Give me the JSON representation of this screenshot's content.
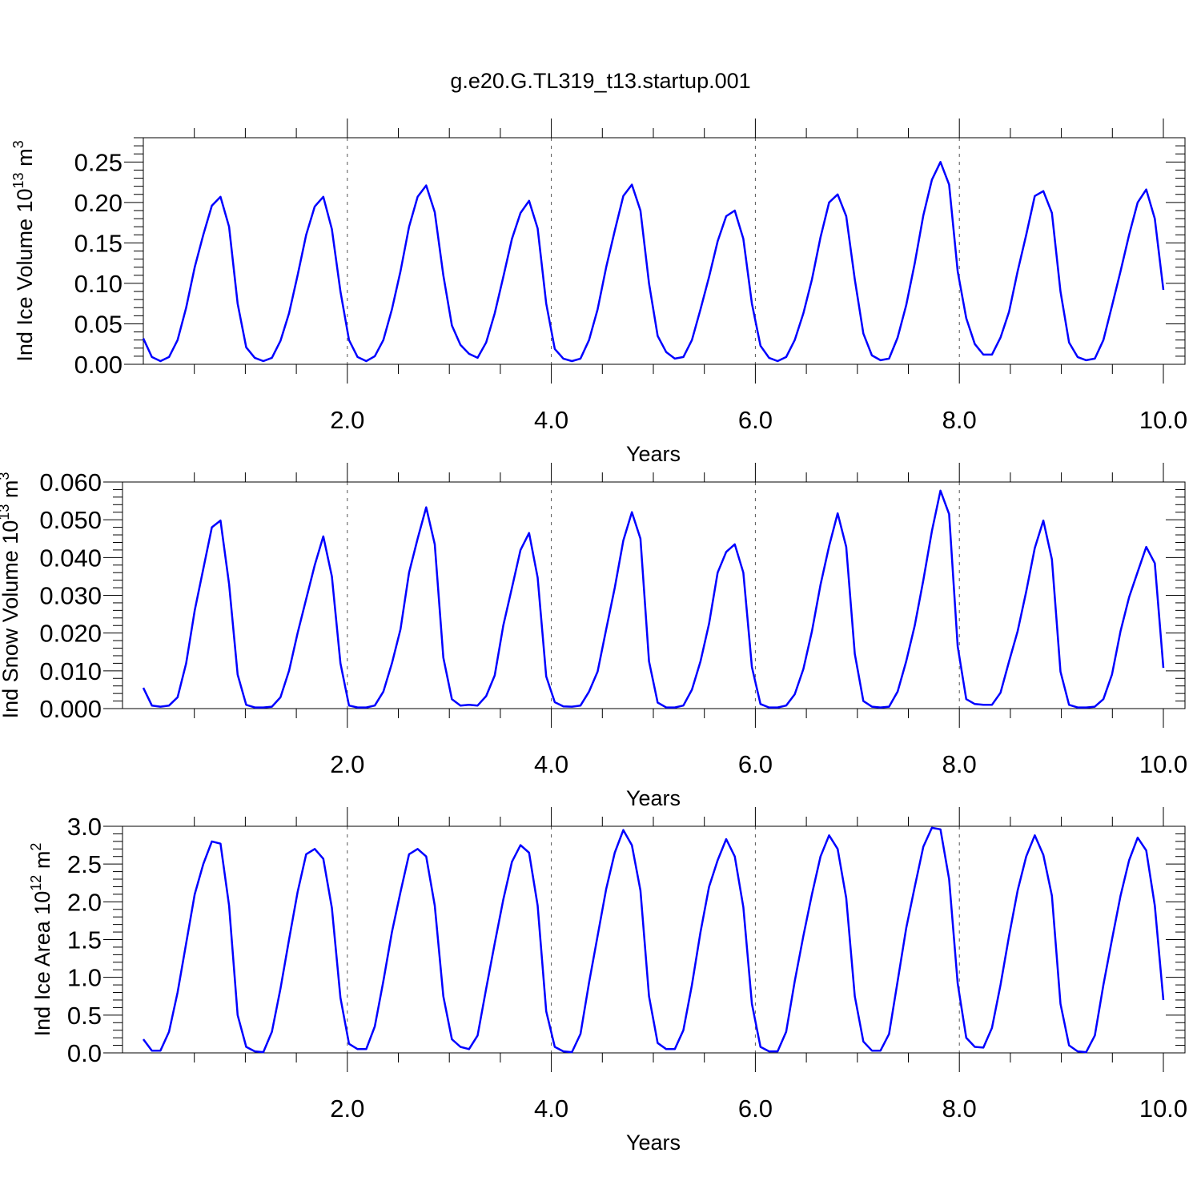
{
  "title": "g.e20.G.TL319_t13.startup.001",
  "colors": {
    "line": "#0000ff",
    "axis": "#000000",
    "grid": "#555555"
  },
  "chart_data": [
    {
      "type": "line",
      "ylabel": "Ind Ice Volume 10",
      "ylabel_exp": "13",
      "ylabel_unit": " m",
      "ylabel_unit_exp": "3",
      "xlabel": "Years",
      "xlim": [
        0.0,
        10.0
      ],
      "ylim": [
        0.0,
        0.28
      ],
      "x_ticks": [
        2.0,
        4.0,
        6.0,
        8.0,
        10.0
      ],
      "x_tick_labels": [
        "2.0",
        "4.0",
        "6.0",
        "8.0",
        "10.0"
      ],
      "y_ticks": [
        0.0,
        0.05,
        0.1,
        0.15,
        0.2,
        0.25
      ],
      "y_tick_labels": [
        "0.00",
        "0.05",
        "0.10",
        "0.15",
        "0.20",
        "0.25"
      ],
      "grid": "vertical dashed at x major ticks",
      "series": [
        {
          "x_start": 0.0,
          "x_step": 0.08333,
          "values": [
            0.032,
            0.009,
            0.004,
            0.009,
            0.03,
            0.07,
            0.12,
            0.16,
            0.196,
            0.207,
            0.17,
            0.075,
            0.021,
            0.008,
            0.004,
            0.008,
            0.029,
            0.063,
            0.11,
            0.16,
            0.195,
            0.207,
            0.167,
            0.09,
            0.03,
            0.009,
            0.004,
            0.01,
            0.03,
            0.068,
            0.115,
            0.17,
            0.207,
            0.221,
            0.188,
            0.11,
            0.048,
            0.024,
            0.013,
            0.008,
            0.027,
            0.063,
            0.108,
            0.155,
            0.187,
            0.202,
            0.168,
            0.075,
            0.019,
            0.007,
            0.004,
            0.007,
            0.03,
            0.068,
            0.12,
            0.165,
            0.208,
            0.222,
            0.19,
            0.1,
            0.035,
            0.015,
            0.007,
            0.009,
            0.03,
            0.068,
            0.108,
            0.152,
            0.183,
            0.19,
            0.155,
            0.075,
            0.023,
            0.008,
            0.004,
            0.009,
            0.03,
            0.063,
            0.105,
            0.157,
            0.2,
            0.21,
            0.183,
            0.105,
            0.038,
            0.011,
            0.005,
            0.007,
            0.033,
            0.073,
            0.125,
            0.184,
            0.228,
            0.25,
            0.222,
            0.115,
            0.057,
            0.025,
            0.012,
            0.012,
            0.033,
            0.065,
            0.115,
            0.16,
            0.208,
            0.214,
            0.187,
            0.09,
            0.027,
            0.009,
            0.005,
            0.007,
            0.03,
            0.072,
            0.115,
            0.16,
            0.2,
            0.216,
            0.18,
            0.092
          ]
        }
      ]
    },
    {
      "type": "line",
      "ylabel": "Ind Snow Volume 10",
      "ylabel_exp": "13",
      "ylabel_unit": " m",
      "ylabel_unit_exp": "3",
      "xlabel": "Years",
      "xlim": [
        0.0,
        10.0
      ],
      "ylim": [
        0.0,
        0.06
      ],
      "x_ticks": [
        2.0,
        4.0,
        6.0,
        8.0,
        10.0
      ],
      "x_tick_labels": [
        "2.0",
        "4.0",
        "6.0",
        "8.0",
        "10.0"
      ],
      "y_ticks": [
        0.0,
        0.01,
        0.02,
        0.03,
        0.04,
        0.05,
        0.06
      ],
      "y_tick_labels": [
        "0.000",
        "0.010",
        "0.020",
        "0.030",
        "0.040",
        "0.050",
        "0.060"
      ],
      "grid": "vertical dashed at x major ticks",
      "series": [
        {
          "x_start": 0.0,
          "x_step": 0.08333,
          "values": [
            0.0055,
            0.0008,
            0.0005,
            0.0008,
            0.003,
            0.012,
            0.026,
            0.037,
            0.048,
            0.0498,
            0.033,
            0.009,
            0.001,
            0.0003,
            0.0003,
            0.0005,
            0.003,
            0.01,
            0.02,
            0.029,
            0.038,
            0.0456,
            0.035,
            0.012,
            0.0008,
            0.0003,
            0.0003,
            0.0008,
            0.0045,
            0.012,
            0.021,
            0.036,
            0.045,
            0.0533,
            0.0435,
            0.0135,
            0.0025,
            0.0008,
            0.001,
            0.0008,
            0.0033,
            0.0088,
            0.022,
            0.032,
            0.042,
            0.0465,
            0.0347,
            0.0085,
            0.0017,
            0.0006,
            0.0005,
            0.0008,
            0.0045,
            0.0098,
            0.021,
            0.032,
            0.0445,
            0.052,
            0.045,
            0.0125,
            0.0016,
            0.0003,
            0.0003,
            0.0008,
            0.005,
            0.0125,
            0.0225,
            0.036,
            0.0415,
            0.0435,
            0.036,
            0.011,
            0.0012,
            0.0003,
            0.0003,
            0.0008,
            0.0038,
            0.0105,
            0.0205,
            0.0328,
            0.043,
            0.0517,
            0.0428,
            0.0145,
            0.002,
            0.0005,
            0.0003,
            0.0005,
            0.0045,
            0.0125,
            0.022,
            0.034,
            0.047,
            0.0577,
            0.0515,
            0.0165,
            0.0025,
            0.0012,
            0.001,
            0.001,
            0.0042,
            0.0125,
            0.0205,
            0.031,
            0.0425,
            0.0498,
            0.0395,
            0.0098,
            0.001,
            0.0003,
            0.0003,
            0.0005,
            0.0025,
            0.009,
            0.0205,
            0.0295,
            0.0362,
            0.0428,
            0.0385,
            0.0108
          ]
        }
      ]
    },
    {
      "type": "line",
      "ylabel": "Ind Ice Area 10",
      "ylabel_exp": "12",
      "ylabel_unit": " m",
      "ylabel_unit_exp": "2",
      "xlabel": "Years",
      "xlim": [
        0.0,
        10.0
      ],
      "ylim": [
        0.0,
        3.0
      ],
      "x_ticks": [
        2.0,
        4.0,
        6.0,
        8.0,
        10.0
      ],
      "x_tick_labels": [
        "2.0",
        "4.0",
        "6.0",
        "8.0",
        "10.0"
      ],
      "y_ticks": [
        0.0,
        0.5,
        1.0,
        1.5,
        2.0,
        2.5,
        3.0
      ],
      "y_tick_labels": [
        "0.0",
        "0.5",
        "1.0",
        "1.5",
        "2.0",
        "2.5",
        "3.0"
      ],
      "grid": "vertical dashed at x major ticks",
      "series": [
        {
          "x_start": 0.0,
          "x_step": 0.08333,
          "values": [
            0.18,
            0.03,
            0.03,
            0.28,
            0.8,
            1.45,
            2.1,
            2.5,
            2.8,
            2.77,
            1.95,
            0.5,
            0.08,
            0.02,
            0.01,
            0.28,
            0.85,
            1.5,
            2.13,
            2.63,
            2.7,
            2.57,
            1.92,
            0.73,
            0.12,
            0.05,
            0.05,
            0.35,
            0.95,
            1.6,
            2.13,
            2.63,
            2.7,
            2.6,
            1.95,
            0.75,
            0.18,
            0.08,
            0.05,
            0.23,
            0.85,
            1.45,
            2.03,
            2.53,
            2.75,
            2.65,
            1.95,
            0.55,
            0.08,
            0.02,
            0.01,
            0.25,
            0.93,
            1.55,
            2.17,
            2.65,
            2.95,
            2.75,
            2.15,
            0.75,
            0.13,
            0.05,
            0.05,
            0.3,
            0.9,
            1.6,
            2.2,
            2.55,
            2.83,
            2.6,
            1.93,
            0.65,
            0.08,
            0.02,
            0.02,
            0.28,
            0.95,
            1.55,
            2.1,
            2.6,
            2.88,
            2.7,
            2.05,
            0.75,
            0.15,
            0.03,
            0.03,
            0.25,
            0.95,
            1.65,
            2.2,
            2.73,
            2.98,
            2.96,
            2.3,
            0.92,
            0.2,
            0.08,
            0.07,
            0.33,
            0.9,
            1.55,
            2.15,
            2.6,
            2.88,
            2.62,
            2.08,
            0.65,
            0.1,
            0.02,
            0.01,
            0.23,
            0.9,
            1.5,
            2.08,
            2.55,
            2.85,
            2.68,
            1.95,
            0.7
          ]
        }
      ]
    }
  ]
}
